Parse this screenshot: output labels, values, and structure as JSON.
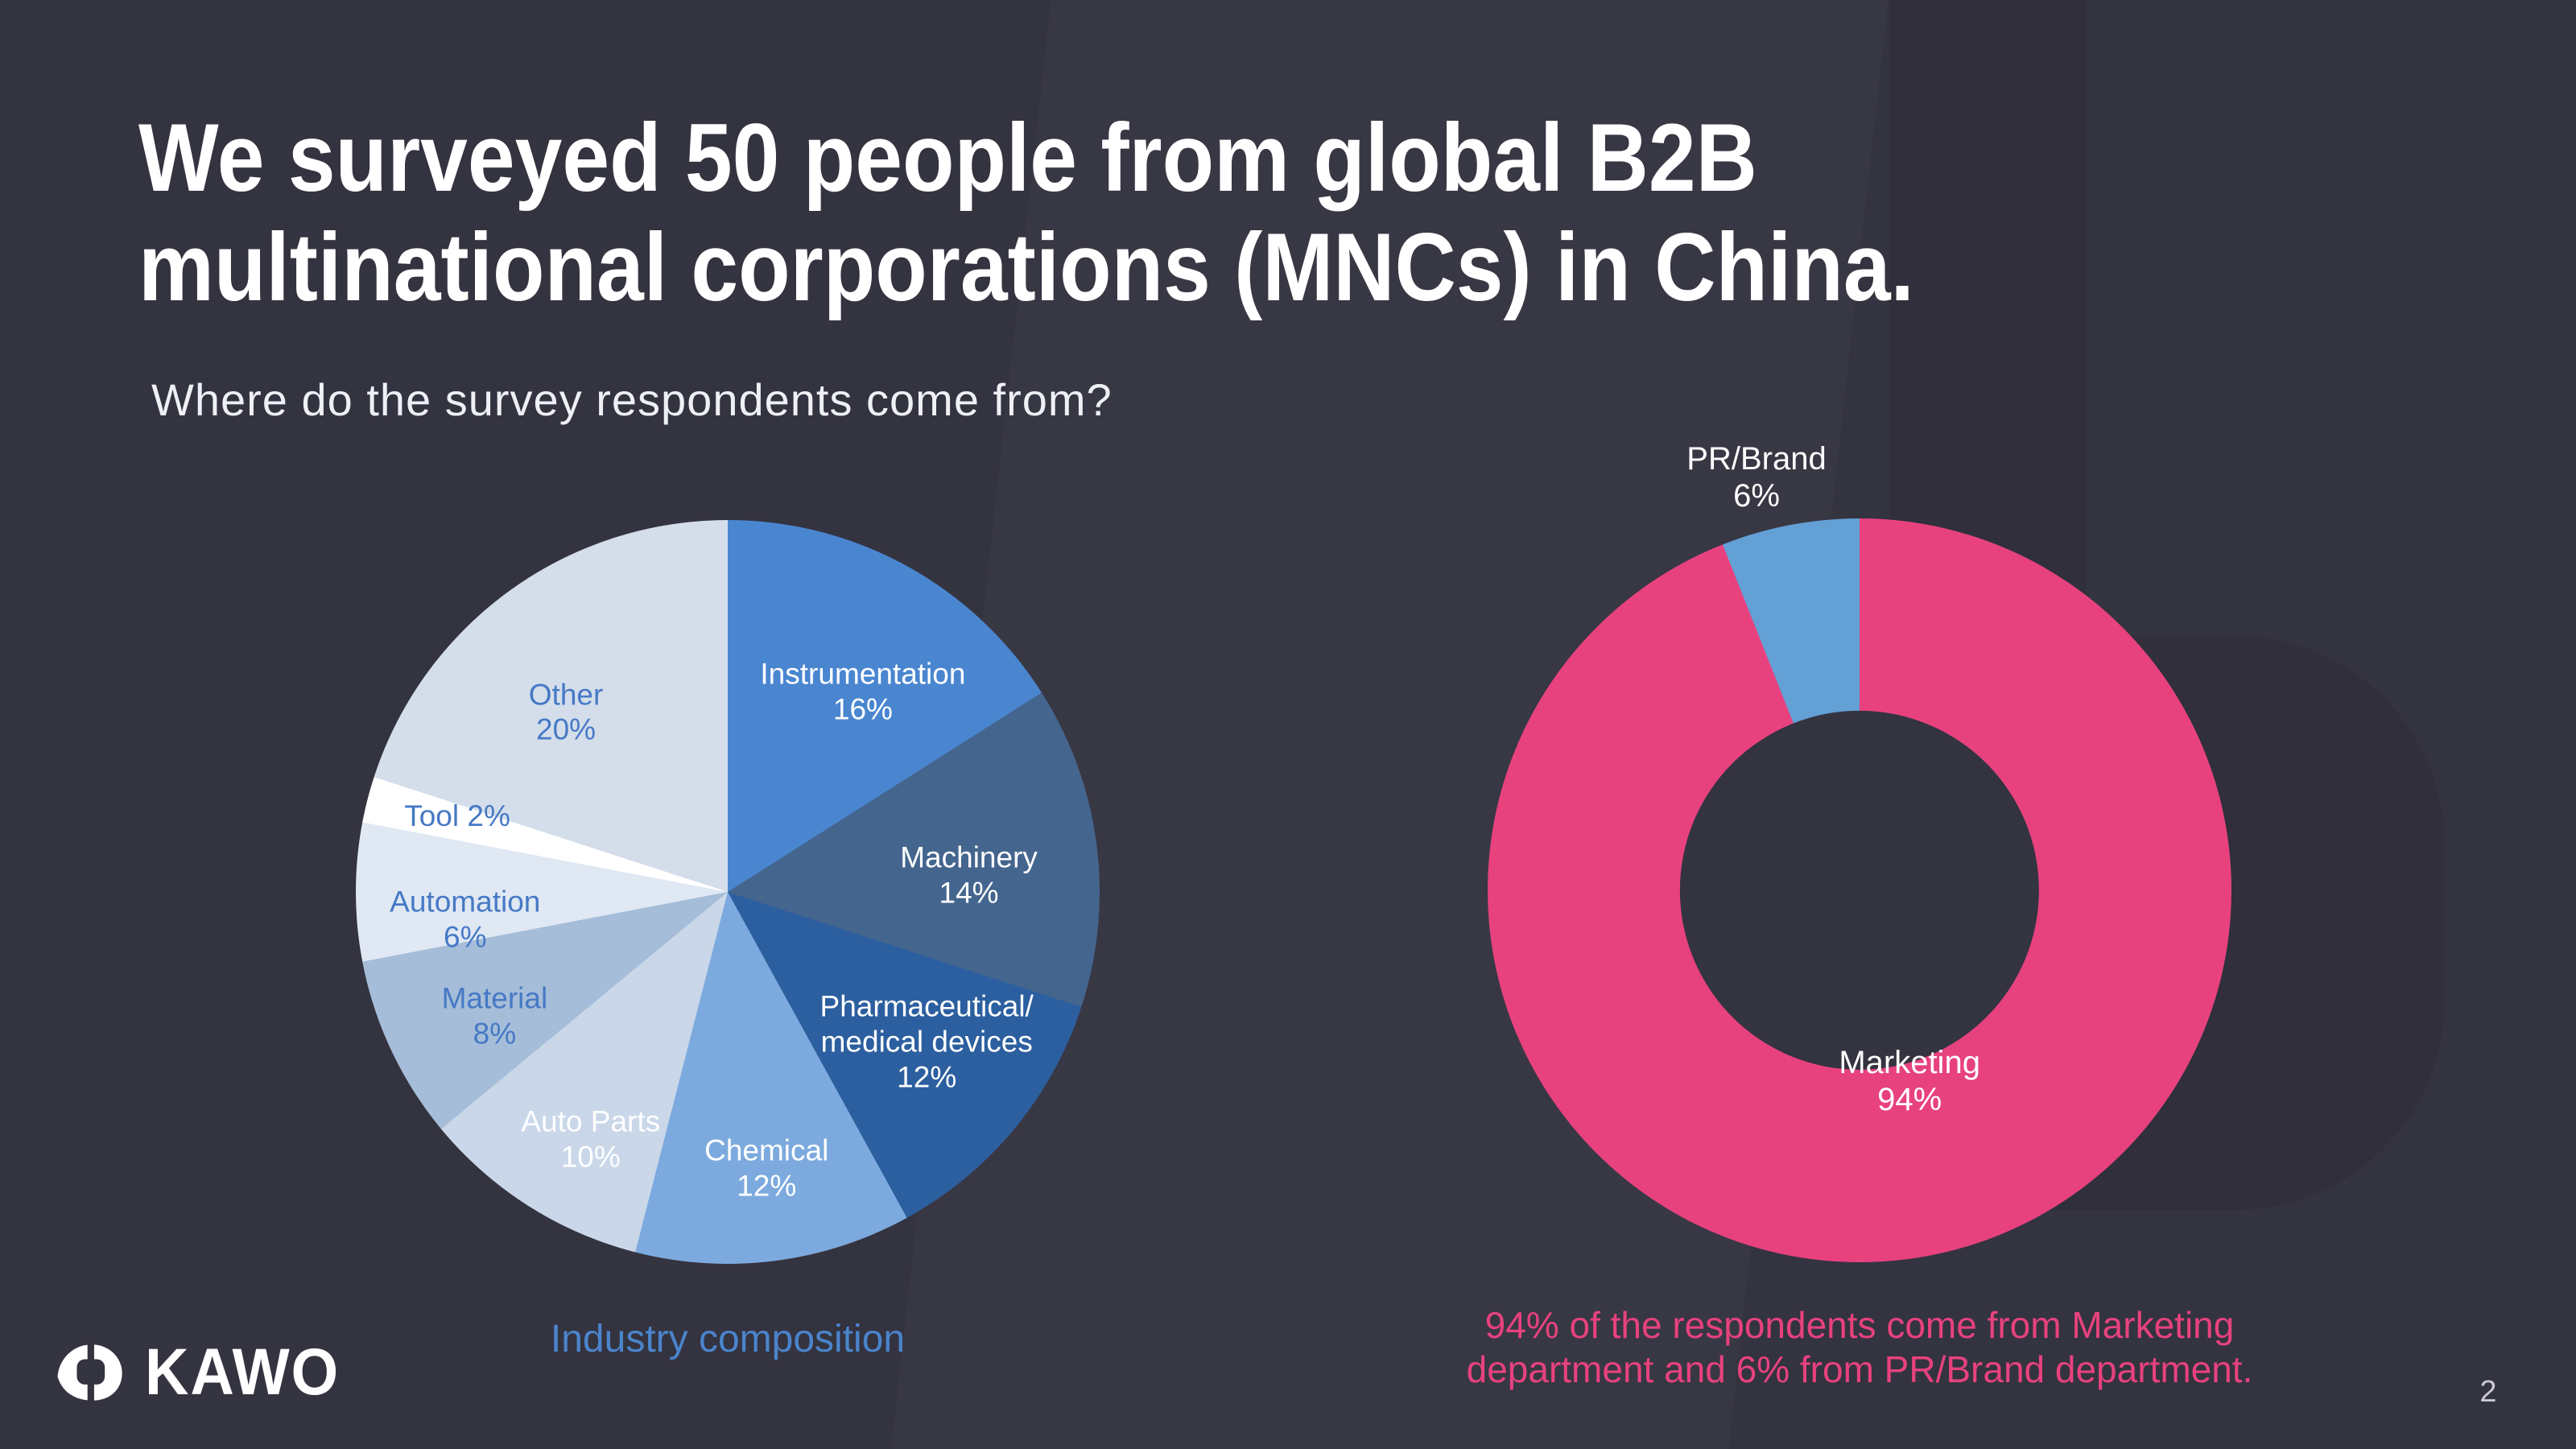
{
  "slide": {
    "title_lines": [
      "We surveyed 50 people from global B2B",
      "multinational corporations (MNCs) in China."
    ],
    "subtitle": "Where do the survey respondents come from?",
    "brand_name": "KAWO",
    "page_number": "2"
  },
  "colors": {
    "background": "#343340",
    "title_text": "#ffffff",
    "pie_label_blue": "#4679c5",
    "chart_caption_blue": "#4a84cb",
    "accent_pink": "#e7427e",
    "pr_brand_blue": "#63a0d6"
  },
  "chart_data": [
    {
      "type": "pie",
      "title": "Industry composition",
      "unit": "%",
      "start_angle_deg": 0,
      "direction": "clockwise",
      "labels_position": "inside",
      "legend": "none",
      "slices": [
        {
          "name": "Instrumentation",
          "value": 16,
          "color": "#4a86d0",
          "lines": [
            "Instrumentation",
            "16%"
          ],
          "text_color": "#ffffff",
          "label_radius": 0.65,
          "label_angle": 34
        },
        {
          "name": "Machinery",
          "value": 14,
          "color": "#44658e",
          "lines": [
            "Machinery",
            "14%"
          ],
          "text_color": "#ffffff",
          "label_radius": 0.65,
          "label_angle": 86
        },
        {
          "name": "Pharmaceutical/medical devices",
          "value": 12,
          "color": "#2c5f9f",
          "lines": [
            "Pharmaceutical/",
            "medical devices",
            "12%"
          ],
          "text_color": "#ffffff",
          "label_radius": 0.67,
          "label_angle": 127
        },
        {
          "name": "Chemical",
          "value": 12,
          "color": "#7caade",
          "lines": [
            "Chemical",
            "12%"
          ],
          "text_color": "#ffffff",
          "label_radius": 0.75,
          "label_angle": 172
        },
        {
          "name": "Auto Parts",
          "value": 10,
          "color": "#c9d7e9",
          "lines": [
            "Auto Parts",
            "10%"
          ],
          "text_color": "#ffffff",
          "label_radius": 0.76,
          "label_angle": 209
        },
        {
          "name": "Material",
          "value": 8,
          "color": "#a5bdd8",
          "lines": [
            "Material",
            "8%"
          ],
          "text_color": "#4679c5",
          "label_radius": 0.71,
          "label_angle": 242
        },
        {
          "name": "Automation",
          "value": 6,
          "color": "#dfe8f3",
          "lines": [
            "Automation",
            "6%"
          ],
          "text_color": "#4679c5",
          "label_radius": 0.71,
          "label_angle": 264
        },
        {
          "name": "Tool",
          "value": 2,
          "color": "#ffffff",
          "lines": [
            "Tool 2%"
          ],
          "text_color": "#4679c5",
          "label_radius": 0.755,
          "label_angle": 285.6
        },
        {
          "name": "Other",
          "value": 20,
          "color": "#d4deeb",
          "lines": [
            "Other",
            "20%"
          ],
          "text_color": "#4679c5",
          "label_radius": 0.65,
          "label_angle": 318
        }
      ]
    },
    {
      "type": "donut",
      "unit": "%",
      "start_angle_deg": 0,
      "direction": "clockwise",
      "inner_radius": 0.483,
      "legend": "none",
      "caption_lines": [
        "94% of the respondents come from Marketing",
        "department and 6% from PR/Brand department."
      ],
      "slices": [
        {
          "name": "Marketing",
          "value": 94,
          "color": "#e7427e",
          "lines": [
            "Marketing",
            "94%"
          ],
          "text_color": "#ffffff",
          "label_radius": 0.53,
          "label_angle": 165.3
        },
        {
          "name": "PR/Brand",
          "value": 6,
          "color": "#63a0d6",
          "lines": [
            "PR/Brand",
            "6%"
          ],
          "text_color": "#ffffff",
          "label_radius": 1.145,
          "label_angle": 346
        }
      ]
    }
  ]
}
